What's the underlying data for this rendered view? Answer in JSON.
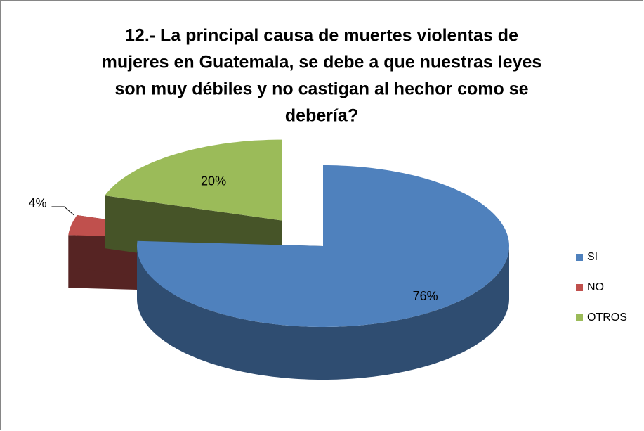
{
  "chart_data": {
    "type": "pie3d",
    "title": [
      "12.- La principal causa de muertes violentas de",
      "mujeres en Guatemala, se debe a que nuestras leyes",
      "son muy débiles y no castigan al hechor como se",
      "debería?"
    ],
    "categories": [
      "SI",
      "NO",
      "OTROS"
    ],
    "values": [
      76,
      4,
      20
    ],
    "value_labels": [
      "76%",
      "4%",
      "20%"
    ],
    "colors": [
      "#4f81bd",
      "#c0504d",
      "#9bbb59"
    ],
    "legend": "right"
  }
}
